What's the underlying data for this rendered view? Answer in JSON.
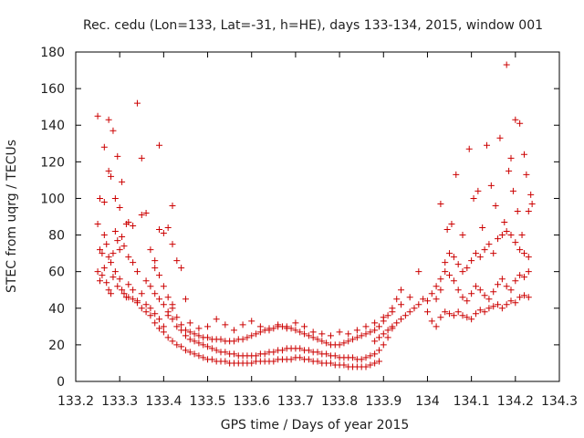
{
  "chart_data": {
    "type": "scatter",
    "title": "Rec. cedu (Lon=133, Lat=-31, h=HE), days 133-134, 2015, window 001",
    "xlabel": "GPS time / Days of year 2015",
    "ylabel": "STEC from uqrg / TECUs",
    "xlim": [
      133.2,
      134.3
    ],
    "ylim": [
      0,
      180
    ],
    "x_ticks": [
      133.2,
      133.3,
      133.4,
      133.5,
      133.6,
      133.7,
      133.8,
      133.9,
      134.0,
      134.1,
      134.2,
      134.3
    ],
    "x_tick_labels": [
      "133.2",
      "133.3",
      "133.4",
      "133.5",
      "133.6",
      "133.7",
      "133.8",
      "133.9",
      "134",
      "134.1",
      "134.2",
      "134.3"
    ],
    "y_ticks": [
      0,
      20,
      40,
      60,
      80,
      100,
      120,
      140,
      160,
      180
    ],
    "y_tick_labels": [
      "0",
      "20",
      "40",
      "60",
      "80",
      "100",
      "120",
      "140",
      "160",
      "180"
    ],
    "grid": false,
    "marker": "plus",
    "color": "#cc0000",
    "points": [
      [
        133.25,
        145
      ],
      [
        133.265,
        128
      ],
      [
        133.275,
        143
      ],
      [
        133.285,
        137
      ],
      [
        133.295,
        123
      ],
      [
        133.305,
        109
      ],
      [
        133.32,
        87
      ],
      [
        133.33,
        85
      ],
      [
        133.34,
        152
      ],
      [
        133.35,
        122
      ],
      [
        133.39,
        129
      ],
      [
        133.42,
        96
      ],
      [
        133.255,
        100
      ],
      [
        133.265,
        98
      ],
      [
        133.275,
        115
      ],
      [
        133.28,
        112
      ],
      [
        133.29,
        100
      ],
      [
        133.3,
        95
      ],
      [
        133.25,
        86
      ],
      [
        133.255,
        72
      ],
      [
        133.26,
        70
      ],
      [
        133.265,
        80
      ],
      [
        133.27,
        75
      ],
      [
        133.275,
        68
      ],
      [
        133.28,
        65
      ],
      [
        133.285,
        70
      ],
      [
        133.29,
        82
      ],
      [
        133.295,
        77
      ],
      [
        133.3,
        72
      ],
      [
        133.305,
        79
      ],
      [
        133.31,
        74
      ],
      [
        133.315,
        86
      ],
      [
        133.32,
        68
      ],
      [
        133.33,
        65
      ],
      [
        133.34,
        60
      ],
      [
        133.35,
        91
      ],
      [
        133.36,
        92
      ],
      [
        133.37,
        72
      ],
      [
        133.38,
        66
      ],
      [
        133.39,
        83
      ],
      [
        133.4,
        81
      ],
      [
        133.41,
        84
      ],
      [
        133.42,
        75
      ],
      [
        133.25,
        60
      ],
      [
        133.255,
        55
      ],
      [
        133.26,
        58
      ],
      [
        133.265,
        62
      ],
      [
        133.27,
        54
      ],
      [
        133.275,
        50
      ],
      [
        133.28,
        48
      ],
      [
        133.285,
        57
      ],
      [
        133.29,
        60
      ],
      [
        133.295,
        52
      ],
      [
        133.3,
        56
      ],
      [
        133.305,
        50
      ],
      [
        133.31,
        48
      ],
      [
        133.315,
        46
      ],
      [
        133.32,
        53
      ],
      [
        133.33,
        50
      ],
      [
        133.34,
        44
      ],
      [
        133.35,
        48
      ],
      [
        133.36,
        42
      ],
      [
        133.37,
        40
      ],
      [
        133.38,
        37
      ],
      [
        133.39,
        34
      ],
      [
        133.4,
        30
      ],
      [
        133.41,
        36
      ],
      [
        133.42,
        42
      ],
      [
        133.43,
        66
      ],
      [
        133.44,
        62
      ],
      [
        133.45,
        45
      ],
      [
        133.32,
        46
      ],
      [
        133.33,
        45
      ],
      [
        133.34,
        43
      ],
      [
        133.35,
        40
      ],
      [
        133.36,
        38
      ],
      [
        133.37,
        36
      ],
      [
        133.38,
        32
      ],
      [
        133.39,
        29
      ],
      [
        133.4,
        27
      ],
      [
        133.41,
        24
      ],
      [
        133.42,
        22
      ],
      [
        133.43,
        20
      ],
      [
        133.44,
        19
      ],
      [
        133.45,
        17
      ],
      [
        133.46,
        16
      ],
      [
        133.47,
        15
      ],
      [
        133.48,
        14
      ],
      [
        133.49,
        13
      ],
      [
        133.5,
        12
      ],
      [
        133.51,
        12
      ],
      [
        133.52,
        11
      ],
      [
        133.53,
        11
      ],
      [
        133.54,
        11
      ],
      [
        133.55,
        10
      ],
      [
        133.56,
        10
      ],
      [
        133.57,
        10
      ],
      [
        133.58,
        10
      ],
      [
        133.59,
        10
      ],
      [
        133.6,
        10
      ],
      [
        133.61,
        11
      ],
      [
        133.62,
        11
      ],
      [
        133.63,
        11
      ],
      [
        133.64,
        11
      ],
      [
        133.65,
        11
      ],
      [
        133.66,
        12
      ],
      [
        133.67,
        12
      ],
      [
        133.68,
        12
      ],
      [
        133.69,
        12
      ],
      [
        133.7,
        13
      ],
      [
        133.71,
        13
      ],
      [
        133.72,
        12
      ],
      [
        133.73,
        12
      ],
      [
        133.74,
        11
      ],
      [
        133.75,
        11
      ],
      [
        133.76,
        10
      ],
      [
        133.77,
        10
      ],
      [
        133.78,
        10
      ],
      [
        133.79,
        9
      ],
      [
        133.8,
        9
      ],
      [
        133.81,
        9
      ],
      [
        133.82,
        8
      ],
      [
        133.83,
        8
      ],
      [
        133.84,
        8
      ],
      [
        133.85,
        8
      ],
      [
        133.86,
        8
      ],
      [
        133.87,
        9
      ],
      [
        133.88,
        10
      ],
      [
        133.89,
        11
      ],
      [
        133.36,
        55
      ],
      [
        133.37,
        52
      ],
      [
        133.38,
        48
      ],
      [
        133.39,
        45
      ],
      [
        133.4,
        42
      ],
      [
        133.41,
        38
      ],
      [
        133.42,
        34
      ],
      [
        133.43,
        30
      ],
      [
        133.44,
        28
      ],
      [
        133.45,
        25
      ],
      [
        133.46,
        23
      ],
      [
        133.47,
        22
      ],
      [
        133.48,
        21
      ],
      [
        133.49,
        20
      ],
      [
        133.5,
        19
      ],
      [
        133.51,
        18
      ],
      [
        133.52,
        17
      ],
      [
        133.53,
        16
      ],
      [
        133.54,
        16
      ],
      [
        133.55,
        15
      ],
      [
        133.56,
        15
      ],
      [
        133.57,
        14
      ],
      [
        133.58,
        14
      ],
      [
        133.59,
        14
      ],
      [
        133.6,
        14
      ],
      [
        133.61,
        14
      ],
      [
        133.62,
        15
      ],
      [
        133.63,
        15
      ],
      [
        133.64,
        16
      ],
      [
        133.65,
        16
      ],
      [
        133.66,
        17
      ],
      [
        133.67,
        17
      ],
      [
        133.68,
        18
      ],
      [
        133.69,
        18
      ],
      [
        133.7,
        18
      ],
      [
        133.71,
        18
      ],
      [
        133.72,
        17
      ],
      [
        133.73,
        17
      ],
      [
        133.74,
        16
      ],
      [
        133.75,
        16
      ],
      [
        133.76,
        15
      ],
      [
        133.77,
        15
      ],
      [
        133.78,
        14
      ],
      [
        133.79,
        14
      ],
      [
        133.8,
        13
      ],
      [
        133.81,
        13
      ],
      [
        133.82,
        13
      ],
      [
        133.83,
        13
      ],
      [
        133.84,
        12
      ],
      [
        133.85,
        12
      ],
      [
        133.86,
        13
      ],
      [
        133.87,
        14
      ],
      [
        133.88,
        15
      ],
      [
        133.89,
        17
      ],
      [
        133.9,
        20
      ],
      [
        133.91,
        24
      ],
      [
        133.92,
        29
      ],
      [
        133.38,
        62
      ],
      [
        133.39,
        58
      ],
      [
        133.4,
        52
      ],
      [
        133.41,
        46
      ],
      [
        133.42,
        40
      ],
      [
        133.43,
        35
      ],
      [
        133.44,
        31
      ],
      [
        133.45,
        28
      ],
      [
        133.46,
        27
      ],
      [
        133.47,
        26
      ],
      [
        133.48,
        25
      ],
      [
        133.49,
        24
      ],
      [
        133.5,
        24
      ],
      [
        133.51,
        23
      ],
      [
        133.52,
        23
      ],
      [
        133.53,
        23
      ],
      [
        133.54,
        22
      ],
      [
        133.55,
        22
      ],
      [
        133.56,
        22
      ],
      [
        133.57,
        23
      ],
      [
        133.58,
        23
      ],
      [
        133.59,
        24
      ],
      [
        133.6,
        25
      ],
      [
        133.61,
        26
      ],
      [
        133.62,
        27
      ],
      [
        133.63,
        28
      ],
      [
        133.64,
        29
      ],
      [
        133.65,
        29
      ],
      [
        133.66,
        30
      ],
      [
        133.67,
        30
      ],
      [
        133.68,
        30
      ],
      [
        133.69,
        29
      ],
      [
        133.7,
        28
      ],
      [
        133.71,
        27
      ],
      [
        133.72,
        26
      ],
      [
        133.73,
        25
      ],
      [
        133.74,
        24
      ],
      [
        133.75,
        23
      ],
      [
        133.76,
        22
      ],
      [
        133.77,
        21
      ],
      [
        133.78,
        20
      ],
      [
        133.79,
        20
      ],
      [
        133.8,
        20
      ],
      [
        133.81,
        21
      ],
      [
        133.82,
        22
      ],
      [
        133.83,
        23
      ],
      [
        133.84,
        24
      ],
      [
        133.85,
        25
      ],
      [
        133.86,
        26
      ],
      [
        133.87,
        27
      ],
      [
        133.88,
        28
      ],
      [
        133.89,
        30
      ],
      [
        133.9,
        33
      ],
      [
        133.91,
        36
      ],
      [
        133.92,
        40
      ],
      [
        133.93,
        45
      ],
      [
        133.94,
        50
      ],
      [
        133.46,
        32
      ],
      [
        133.48,
        29
      ],
      [
        133.5,
        30
      ],
      [
        133.52,
        34
      ],
      [
        133.54,
        31
      ],
      [
        133.56,
        28
      ],
      [
        133.58,
        31
      ],
      [
        133.6,
        33
      ],
      [
        133.62,
        30
      ],
      [
        133.64,
        28
      ],
      [
        133.66,
        31
      ],
      [
        133.68,
        29
      ],
      [
        133.7,
        32
      ],
      [
        133.72,
        30
      ],
      [
        133.74,
        27
      ],
      [
        133.76,
        26
      ],
      [
        133.78,
        25
      ],
      [
        133.8,
        27
      ],
      [
        133.82,
        26
      ],
      [
        133.84,
        28
      ],
      [
        133.86,
        30
      ],
      [
        133.88,
        32
      ],
      [
        133.9,
        35
      ],
      [
        133.92,
        38
      ],
      [
        133.94,
        42
      ],
      [
        133.96,
        46
      ],
      [
        133.98,
        60
      ],
      [
        133.88,
        22
      ],
      [
        133.89,
        24
      ],
      [
        133.9,
        26
      ],
      [
        133.91,
        28
      ],
      [
        133.92,
        30
      ],
      [
        133.93,
        32
      ],
      [
        133.94,
        34
      ],
      [
        133.95,
        36
      ],
      [
        133.96,
        38
      ],
      [
        133.97,
        40
      ],
      [
        133.98,
        42
      ],
      [
        133.99,
        45
      ],
      [
        134.0,
        38
      ],
      [
        134.01,
        33
      ],
      [
        134.02,
        30
      ],
      [
        134.03,
        35
      ],
      [
        134.04,
        38
      ],
      [
        134.05,
        37
      ],
      [
        134.06,
        36
      ],
      [
        134.07,
        38
      ],
      [
        134.08,
        36
      ],
      [
        134.09,
        35
      ],
      [
        134.1,
        34
      ],
      [
        134.11,
        37
      ],
      [
        134.12,
        39
      ],
      [
        134.13,
        38
      ],
      [
        134.14,
        40
      ],
      [
        134.15,
        41
      ],
      [
        134.16,
        42
      ],
      [
        134.17,
        40
      ],
      [
        134.18,
        42
      ],
      [
        134.19,
        44
      ],
      [
        134.2,
        43
      ],
      [
        134.21,
        46
      ],
      [
        134.22,
        47
      ],
      [
        134.23,
        46
      ],
      [
        134.0,
        44
      ],
      [
        134.01,
        48
      ],
      [
        134.02,
        52
      ],
      [
        134.03,
        56
      ],
      [
        134.04,
        60
      ],
      [
        134.05,
        58
      ],
      [
        134.06,
        55
      ],
      [
        134.07,
        50
      ],
      [
        134.08,
        46
      ],
      [
        134.09,
        44
      ],
      [
        134.1,
        48
      ],
      [
        134.11,
        52
      ],
      [
        134.12,
        50
      ],
      [
        134.13,
        47
      ],
      [
        134.14,
        45
      ],
      [
        134.15,
        49
      ],
      [
        134.16,
        53
      ],
      [
        134.17,
        56
      ],
      [
        134.18,
        52
      ],
      [
        134.19,
        50
      ],
      [
        134.2,
        55
      ],
      [
        134.21,
        58
      ],
      [
        134.22,
        57
      ],
      [
        134.23,
        60
      ],
      [
        134.02,
        45
      ],
      [
        134.03,
        50
      ],
      [
        134.04,
        65
      ],
      [
        134.05,
        70
      ],
      [
        134.06,
        68
      ],
      [
        134.07,
        64
      ],
      [
        134.08,
        60
      ],
      [
        134.09,
        62
      ],
      [
        134.1,
        66
      ],
      [
        134.11,
        70
      ],
      [
        134.12,
        68
      ],
      [
        134.13,
        72
      ],
      [
        134.14,
        75
      ],
      [
        134.15,
        70
      ],
      [
        134.16,
        78
      ],
      [
        134.17,
        80
      ],
      [
        134.18,
        82
      ],
      [
        134.19,
        80
      ],
      [
        134.2,
        76
      ],
      [
        134.21,
        72
      ],
      [
        134.22,
        70
      ],
      [
        134.23,
        68
      ],
      [
        134.03,
        97
      ],
      [
        134.045,
        83
      ],
      [
        134.055,
        86
      ],
      [
        134.065,
        113
      ],
      [
        134.08,
        80
      ],
      [
        134.095,
        127
      ],
      [
        134.105,
        100
      ],
      [
        134.115,
        104
      ],
      [
        134.125,
        84
      ],
      [
        134.135,
        129
      ],
      [
        134.145,
        107
      ],
      [
        134.155,
        96
      ],
      [
        134.165,
        133
      ],
      [
        134.175,
        87
      ],
      [
        134.18,
        173
      ],
      [
        134.185,
        115
      ],
      [
        134.19,
        122
      ],
      [
        134.195,
        104
      ],
      [
        134.2,
        143
      ],
      [
        134.205,
        93
      ],
      [
        134.21,
        141
      ],
      [
        134.215,
        80
      ],
      [
        134.22,
        124
      ],
      [
        134.225,
        113
      ],
      [
        134.23,
        93
      ],
      [
        134.235,
        102
      ],
      [
        134.238,
        97
      ]
    ]
  }
}
